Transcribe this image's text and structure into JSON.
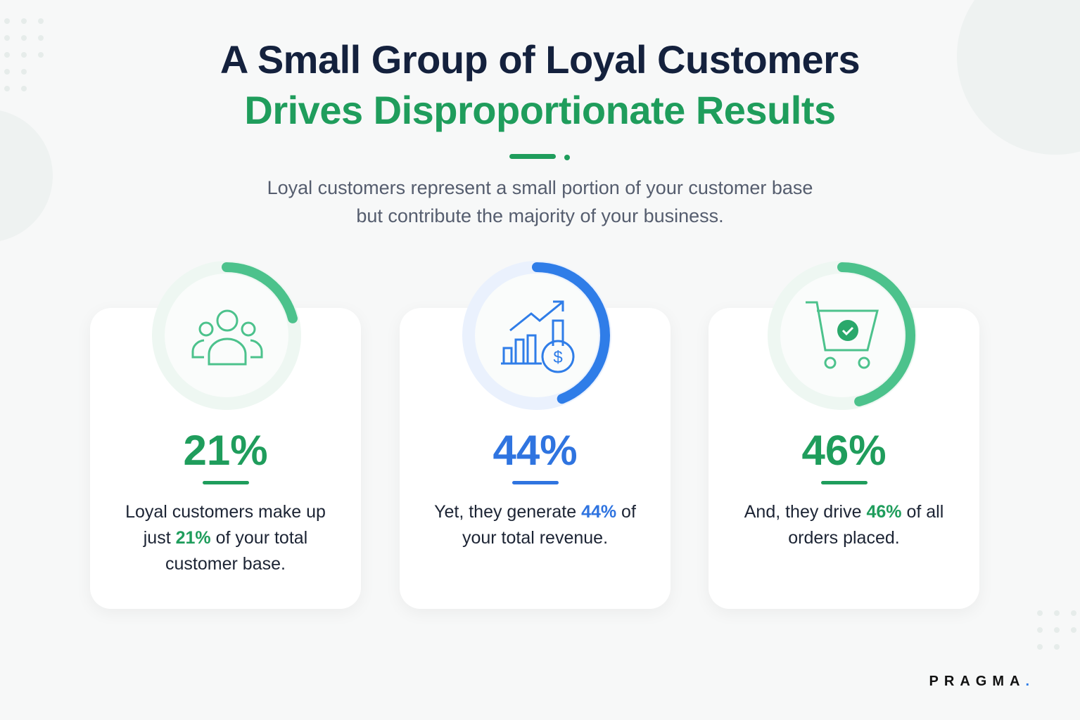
{
  "header": {
    "title_line1": "A Small Group of Loyal Customers",
    "title_line2": "Drives Disproportionate Results",
    "subtitle_line1": "Loyal customers represent a small portion of your customer base",
    "subtitle_line2": "but contribute the majority of your business."
  },
  "cards": [
    {
      "value": 21,
      "value_label": "21%",
      "color": "#1f9d5c",
      "ring_color": "#4cc28c",
      "text_before": "Loyal customers make up just ",
      "text_after": " of your total customer base."
    },
    {
      "value": 44,
      "value_label": "44%",
      "color": "#2f74e0",
      "ring_color": "#2f7de8",
      "text_before": "Yet, they generate ",
      "text_after": " of your total revenue."
    },
    {
      "value": 46,
      "value_label": "46%",
      "color": "#1f9d5c",
      "ring_color": "#4cc28c",
      "text_before": "And, they drive ",
      "text_after": " of all orders placed."
    }
  ],
  "brand": {
    "name": "PRAGMA",
    "dot": "."
  }
}
